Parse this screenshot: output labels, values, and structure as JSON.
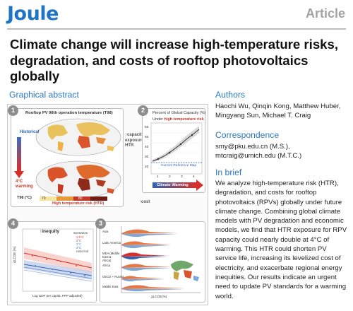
{
  "header": {
    "journal": "Joule",
    "article_type": "Article"
  },
  "title": "Climate change will increase high-temperature risks, degradation, and costs of rooftop photovoltaics globally",
  "graphical_abstract": {
    "heading": "Graphical abstract",
    "panel1": {
      "number": "1",
      "title": "Rooftop PV 98th operation temperature (T98)",
      "historical": "Historical",
      "warming": "4°C warming",
      "legend_label": "T98 (°C)",
      "legend_low": "70",
      "legend_high": "80",
      "htr_label": "High temperature risk (HTR)"
    },
    "panel2": {
      "number": "2",
      "title": "Percent of Global Capacity (%)",
      "subtitle_prefix": "Under ",
      "subtitle_highlight": "high temperature risk",
      "y_ticks": [
        "60",
        "50",
        "40",
        "30",
        "20"
      ],
      "x_ticks": [
        "1",
        "2",
        "3",
        "4"
      ],
      "reference_label": "Current Reference Map",
      "arrow_label": "Climate Warming"
    },
    "annotation_capacity": "↑capacity exposure of HTR",
    "annotation_cost": "↑cost",
    "panel3": {
      "number": "3",
      "regions": [
        "Asia",
        "Latin America",
        "MEA (Middle East & Africa)",
        "Africa",
        "OECD + Russia",
        "Middle East"
      ],
      "x_label": "ΔLCOE(%)"
    },
    "panel4": {
      "number": "4",
      "annotation": "↑inequity",
      "legend_title": "Scenarios",
      "legend_items": [
        "1.5°C",
        "2°C",
        "3°C",
        "4°C",
        "Historical"
      ],
      "y_label": "ΔLCOE (%)",
      "x_label": "Log GDP per capita, PPP adjusted)"
    }
  },
  "authors": {
    "heading": "Authors",
    "names": "Haochi Wu, Qinqin Kong, Matthew Huber, Mingyang Sun, Michael T. Craig"
  },
  "correspondence": {
    "heading": "Correspondence",
    "emails": "smy@pku.edu.cn (M.S.), mtcraig@umich.edu (M.T.C.)"
  },
  "in_brief": {
    "heading": "In brief",
    "text": "We analyze high-temperature risk (HTR), degradation, and costs for rooftop photovoltaics (RPVs) globally under future climate change. Combining global climate models with PV degradation and economic models, we find that HTR exposure for RPV capacity could nearly double at 4°C of warming. This HTR could shorten PV service life, increasing its levelized cost of electricity, and exacerbate regional energy inequities. Our results indicate an urgent need to update PV standards for a warming world."
  },
  "colors": {
    "brand_blue": "#1f74c4",
    "section_blue": "#2a78c2",
    "article_gray": "#a3a3a3",
    "risk_red": "#c0392b"
  }
}
